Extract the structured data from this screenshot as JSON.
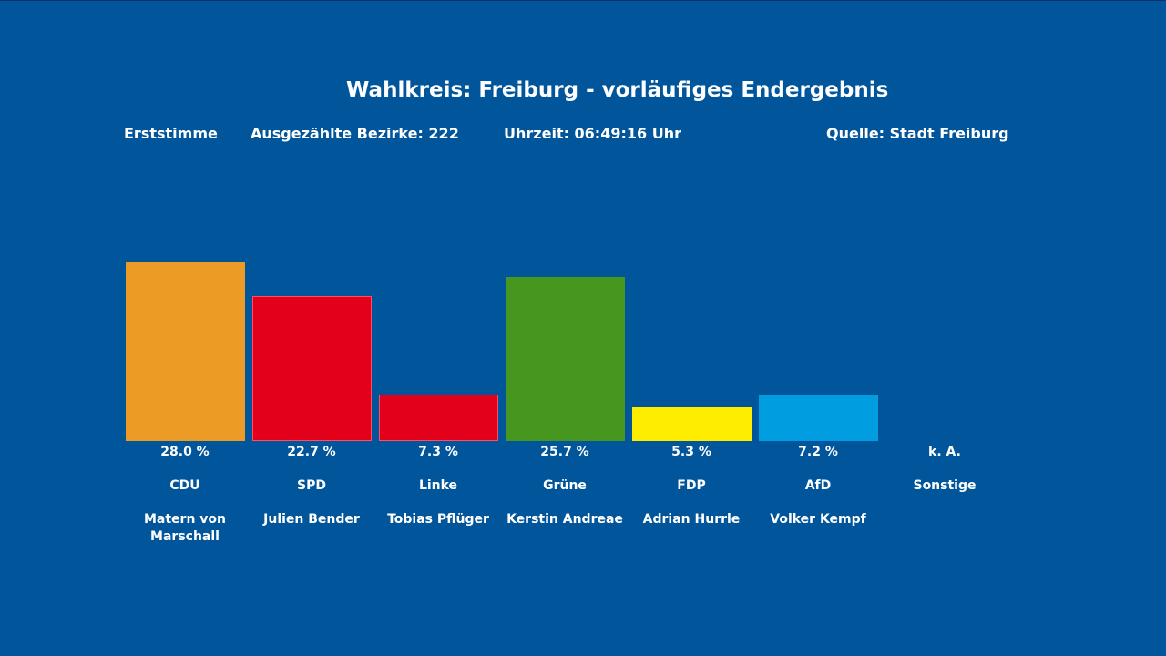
{
  "header": {
    "title": "Wahlkreis: Freiburg - vorläufiges Endergebnis",
    "vote_type": "Erststimme",
    "counted": "Ausgezählte Bezirke: 222",
    "time": "Uhrzeit: 06:49:16 Uhr",
    "source": "Quelle: Stadt Freiburg"
  },
  "chart_data": {
    "type": "bar",
    "title": "Wahlkreis: Freiburg - vorläufiges Endergebnis",
    "xlabel": "",
    "ylabel": "",
    "ylim": [
      0,
      40
    ],
    "grid": false,
    "categories": [
      "CDU",
      "SPD",
      "Linke",
      "Grüne",
      "FDP",
      "AfD",
      "Sonstige"
    ],
    "candidates": [
      "Matern von Marschall",
      "Julien Bender",
      "Tobias Pflüger",
      "Kerstin Andreae",
      "Adrian Hurrle",
      "Volker Kempf",
      ""
    ],
    "values": [
      28.0,
      22.7,
      7.3,
      25.7,
      5.3,
      7.2,
      null
    ],
    "value_labels": [
      "28.0 %",
      "22.7 %",
      "7.3 %",
      "25.7 %",
      "5.3 %",
      "7.2 %",
      "k. A."
    ],
    "colors": [
      "#ec9c24",
      "#e2001a",
      "#e2001a",
      "#47961f",
      "#ffed00",
      "#009ee0",
      "#01559b"
    ],
    "edge_colors": [
      "#ec9c24",
      "#ff4d66",
      "#ff4d66",
      "#47961f",
      "#ffed00",
      "#009ee0",
      "#01559b"
    ]
  }
}
